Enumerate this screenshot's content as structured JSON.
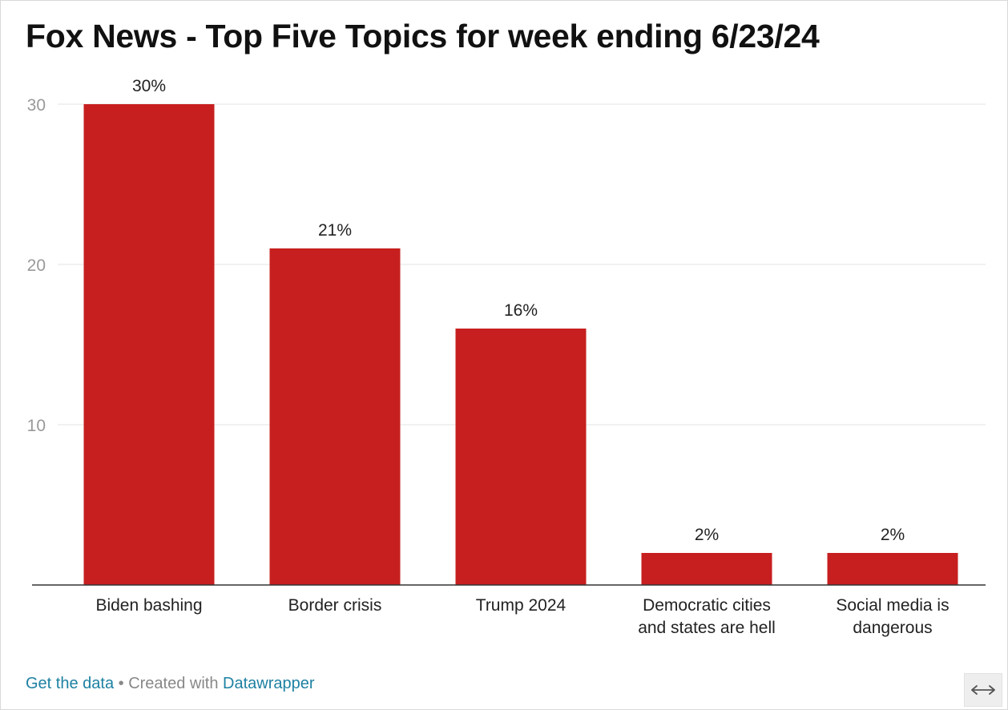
{
  "header": {
    "title": "Fox News - Top Five Topics for week ending 6/23/24"
  },
  "chart_data": {
    "type": "bar",
    "title": "Fox News - Top Five Topics for week ending 6/23/24",
    "categories": [
      "Biden bashing",
      "Border crisis",
      "Trump 2024",
      "Democratic cities and states are hell",
      "Social media is dangerous"
    ],
    "values": [
      30,
      21,
      16,
      2,
      2
    ],
    "value_labels": [
      "30%",
      "21%",
      "16%",
      "2%",
      "2%"
    ],
    "category_lines": [
      [
        "Biden bashing"
      ],
      [
        "Border crisis"
      ],
      [
        "Trump 2024"
      ],
      [
        "Democratic cities",
        "and states are hell"
      ],
      [
        "Social media is",
        "dangerous"
      ]
    ],
    "ylim": [
      0,
      30
    ],
    "yticks": [
      10,
      20,
      30
    ],
    "ytick_labels": [
      "10",
      "20",
      "30"
    ],
    "xlabel": "",
    "ylabel": "",
    "grid": true,
    "legend": "none",
    "colors": {
      "bar": "#c71f1f",
      "grid": "#e3e3e3",
      "axis": "#333333",
      "tick_text": "#999999",
      "label_text": "#222222"
    }
  },
  "footer": {
    "get_data": "Get the data",
    "separator": " • ",
    "created_with": "Created with ",
    "datawrapper": "Datawrapper"
  },
  "controls": {
    "resize_icon": "arrows-horizontal-icon"
  }
}
